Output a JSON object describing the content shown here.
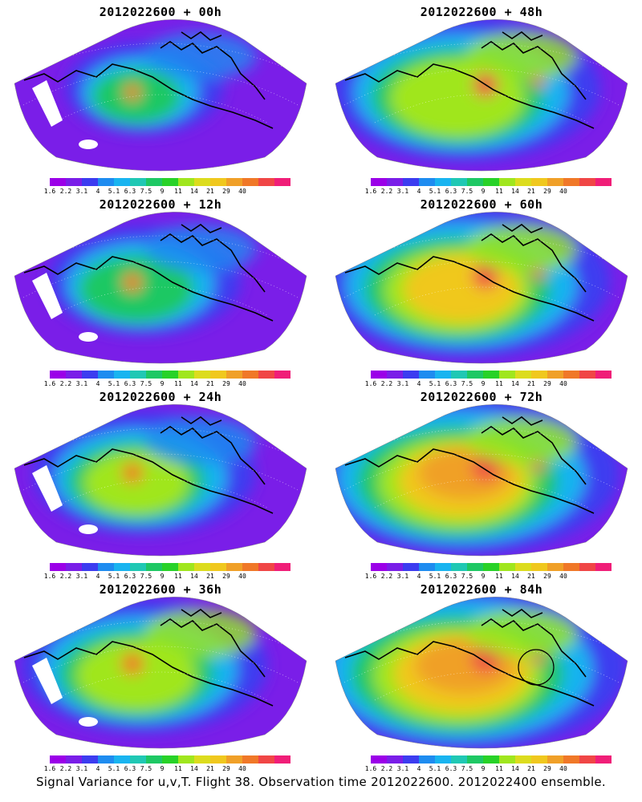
{
  "panels": [
    {
      "title": "2012022600 + 00h",
      "intensity": 0.25
    },
    {
      "title": "2012022600 + 48h",
      "intensity": 0.72
    },
    {
      "title": "2012022600 + 12h",
      "intensity": 0.4
    },
    {
      "title": "2012022600 + 60h",
      "intensity": 0.8
    },
    {
      "title": "2012022600 + 24h",
      "intensity": 0.52
    },
    {
      "title": "2012022600 + 72h",
      "intensity": 0.88
    },
    {
      "title": "2012022600 + 36h",
      "intensity": 0.62
    },
    {
      "title": "2012022600 + 84h",
      "intensity": 0.95
    }
  ],
  "colorbar": {
    "colors": [
      "#9b00e8",
      "#7a1ee8",
      "#3c3cf0",
      "#1e8cf0",
      "#19b4f0",
      "#20c8b4",
      "#1ec864",
      "#28d228",
      "#a0e61e",
      "#dcdc1e",
      "#f0c81e",
      "#f0a028",
      "#f07828",
      "#f04646",
      "#f01e78"
    ],
    "labels": [
      "1.6",
      "2.2",
      "3.1",
      "4",
      "5.1",
      "6.3",
      "7.5",
      "9",
      "11",
      "14",
      "21",
      "29",
      "40"
    ]
  },
  "caption": "Signal Variance for u,v,T. Flight 38. Observation time 2012022600. 2012022400 ensemble."
}
